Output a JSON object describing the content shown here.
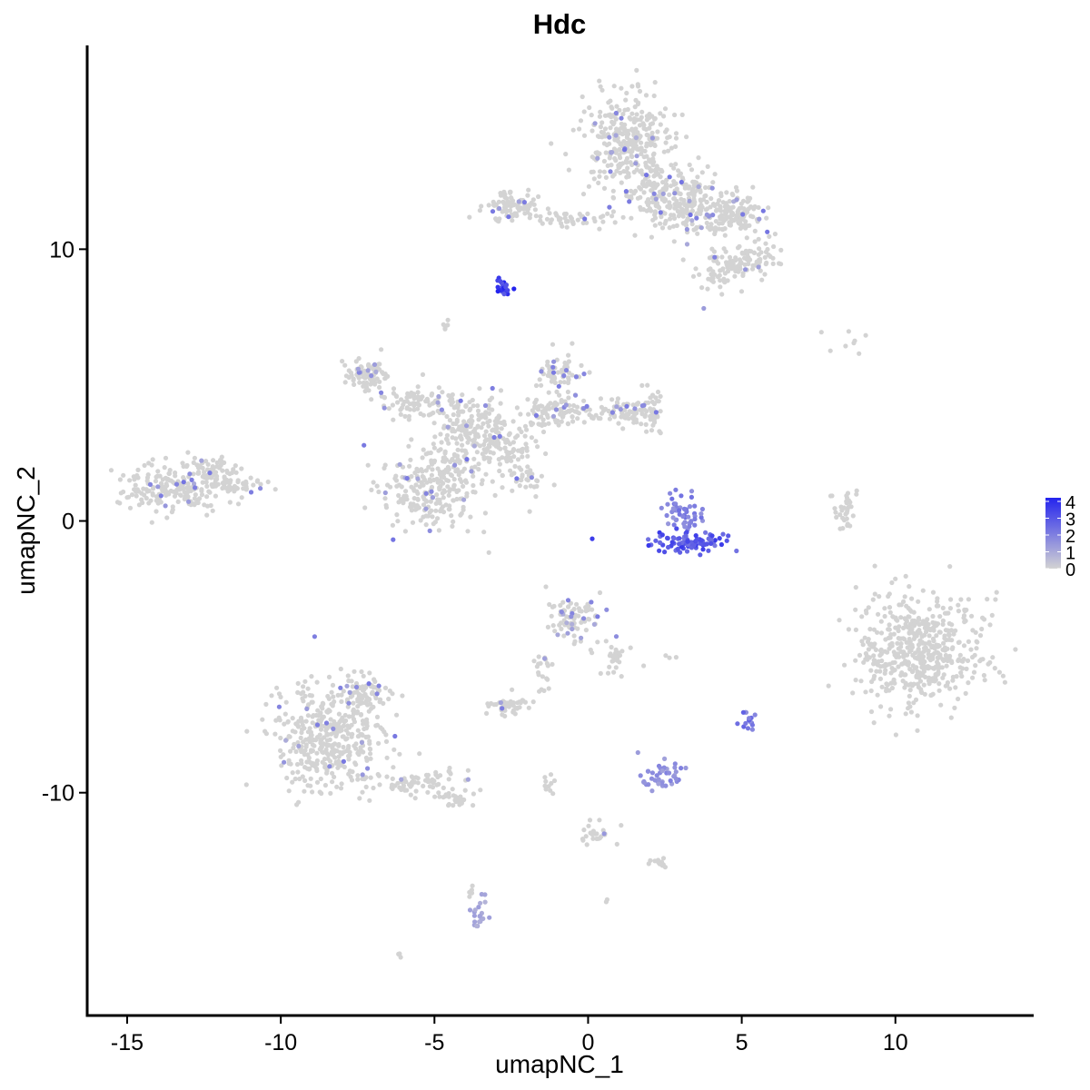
{
  "chart_data": {
    "type": "scatter",
    "title": "Hdc",
    "xlabel": "umapNC_1",
    "ylabel": "umapNC_2",
    "xlim": [
      -16.3,
      14.5
    ],
    "ylim": [
      -18.2,
      17.5
    ],
    "x_ticks": [
      {
        "value": -15,
        "label": "-15"
      },
      {
        "value": -10,
        "label": "-10"
      },
      {
        "value": -5,
        "label": "-5"
      },
      {
        "value": 0,
        "label": "0"
      },
      {
        "value": 5,
        "label": "5"
      },
      {
        "value": 10,
        "label": "10"
      }
    ],
    "y_ticks": [
      {
        "value": -10,
        "label": "-10"
      },
      {
        "value": 0,
        "label": "0"
      },
      {
        "value": 10,
        "label": "10"
      }
    ],
    "grid": false,
    "legend": {
      "placement": "right",
      "type": "colorbar",
      "range": [
        0,
        4
      ],
      "labels": [
        "4",
        "3",
        "2",
        "1",
        "0"
      ]
    },
    "colors": {
      "low": "#d3d3d3",
      "high": "#2424ee",
      "axis": "#000000",
      "background": "#ffffff"
    },
    "clusters": [
      {
        "cx": 1.3,
        "cy": 14.0,
        "rx": 1.4,
        "ry": 1.5,
        "n": 320,
        "expr": 0.05,
        "hot": 0.05
      },
      {
        "cx": 2.3,
        "cy": 12.0,
        "rx": 1.2,
        "ry": 0.9,
        "n": 120,
        "expr": 0.05,
        "hot": 0.05
      },
      {
        "cx": -2.6,
        "cy": 11.6,
        "rx": 0.9,
        "ry": 0.5,
        "n": 90,
        "expr": 0.05,
        "hot": 0.05
      },
      {
        "cx": -0.5,
        "cy": 11.1,
        "rx": 1.5,
        "ry": 0.25,
        "n": 45,
        "expr": 0.05,
        "hot": 0.05
      },
      {
        "cx": 3.3,
        "cy": 11.8,
        "rx": 1.1,
        "ry": 1.2,
        "n": 170,
        "expr": 0.05,
        "hot": 0.05
      },
      {
        "cx": 4.8,
        "cy": 11.3,
        "rx": 1.0,
        "ry": 0.6,
        "n": 120,
        "expr": 0.05,
        "hot": 0.05
      },
      {
        "cx": 5.2,
        "cy": 9.6,
        "rx": 0.8,
        "ry": 0.6,
        "n": 90,
        "expr": 0.05,
        "hot": 0.05
      },
      {
        "cx": 4.2,
        "cy": 9.0,
        "rx": 0.5,
        "ry": 0.8,
        "n": 40,
        "expr": 0.05,
        "hot": 0.05
      },
      {
        "cx": -2.8,
        "cy": 8.6,
        "rx": 0.25,
        "ry": 0.25,
        "n": 22,
        "expr": 4.0,
        "hot": 0.0
      },
      {
        "cx": -4.6,
        "cy": 7.2,
        "rx": 0.2,
        "ry": 0.2,
        "n": 6,
        "expr": 0.2,
        "hot": 0.0
      },
      {
        "cx": -7.2,
        "cy": 5.4,
        "rx": 0.7,
        "ry": 0.5,
        "n": 80,
        "expr": 0.05,
        "hot": 0.05
      },
      {
        "cx": -5.6,
        "cy": 4.4,
        "rx": 1.1,
        "ry": 0.5,
        "n": 80,
        "expr": 0.05,
        "hot": 0.05
      },
      {
        "cx": -3.8,
        "cy": 3.6,
        "rx": 1.2,
        "ry": 0.9,
        "n": 150,
        "expr": 0.05,
        "hot": 0.05
      },
      {
        "cx": -2.8,
        "cy": 2.8,
        "rx": 1.0,
        "ry": 1.0,
        "n": 110,
        "expr": 0.05,
        "hot": 0.05
      },
      {
        "cx": -1.1,
        "cy": 4.0,
        "rx": 1.0,
        "ry": 0.5,
        "n": 100,
        "expr": 0.05,
        "hot": 0.05
      },
      {
        "cx": -1.0,
        "cy": 5.5,
        "rx": 0.7,
        "ry": 0.7,
        "n": 60,
        "expr": 0.3,
        "hot": 0.15
      },
      {
        "cx": 1.3,
        "cy": 4.0,
        "rx": 0.9,
        "ry": 0.4,
        "n": 70,
        "expr": 0.05,
        "hot": 0.05
      },
      {
        "cx": 2.1,
        "cy": 4.0,
        "rx": 0.4,
        "ry": 0.6,
        "n": 40,
        "expr": 0.05,
        "hot": 0.05
      },
      {
        "cx": -5.2,
        "cy": 1.0,
        "rx": 1.4,
        "ry": 1.3,
        "n": 220,
        "expr": 0.05,
        "hot": 0.05
      },
      {
        "cx": -4.3,
        "cy": 2.0,
        "rx": 0.8,
        "ry": 0.8,
        "n": 50,
        "expr": 0.05,
        "hot": 0.05
      },
      {
        "cx": -2.2,
        "cy": 1.5,
        "rx": 0.9,
        "ry": 0.6,
        "n": 30,
        "expr": 0.05,
        "hot": 0.05
      },
      {
        "cx": -13.4,
        "cy": 1.2,
        "rx": 1.6,
        "ry": 0.9,
        "n": 200,
        "expr": 0.05,
        "hot": 0.05
      },
      {
        "cx": -12.2,
        "cy": 1.8,
        "rx": 0.7,
        "ry": 0.6,
        "n": 60,
        "expr": 0.05,
        "hot": 0.05
      },
      {
        "cx": -11.3,
        "cy": 1.3,
        "rx": 0.7,
        "ry": 0.3,
        "n": 30,
        "expr": 0.05,
        "hot": 0.05
      },
      {
        "cx": 3.1,
        "cy": 0.4,
        "rx": 0.6,
        "ry": 0.6,
        "n": 50,
        "expr": 2.2,
        "hot": 0.2
      },
      {
        "cx": 3.3,
        "cy": -0.8,
        "rx": 1.2,
        "ry": 0.35,
        "n": 90,
        "expr": 3.4,
        "hot": 0.1
      },
      {
        "cx": 8.3,
        "cy": 0.4,
        "rx": 0.4,
        "ry": 0.6,
        "n": 35,
        "expr": 0.05,
        "hot": 0.0
      },
      {
        "cx": 10.8,
        "cy": -4.8,
        "rx": 1.8,
        "ry": 2.0,
        "n": 520,
        "expr": 0.05,
        "hot": 0.0
      },
      {
        "cx": 8.2,
        "cy": 6.6,
        "rx": 1.2,
        "ry": 0.4,
        "n": 8,
        "expr": 0.05,
        "hot": 0.0
      },
      {
        "cx": -0.5,
        "cy": -3.6,
        "rx": 0.8,
        "ry": 0.6,
        "n": 90,
        "expr": 0.4,
        "hot": 0.15
      },
      {
        "cx": 0.9,
        "cy": -5.0,
        "rx": 0.5,
        "ry": 0.6,
        "n": 30,
        "expr": 0.3,
        "hot": 0.1
      },
      {
        "cx": -1.4,
        "cy": -5.5,
        "rx": 0.4,
        "ry": 0.7,
        "n": 20,
        "expr": 0.05,
        "hot": 0.05
      },
      {
        "cx": -2.6,
        "cy": -6.8,
        "rx": 0.6,
        "ry": 0.3,
        "n": 45,
        "expr": 0.05,
        "hot": 0.05
      },
      {
        "cx": -8.4,
        "cy": -8.0,
        "rx": 1.6,
        "ry": 1.8,
        "n": 420,
        "expr": 0.05,
        "hot": 0.04
      },
      {
        "cx": -7.2,
        "cy": -6.4,
        "rx": 0.8,
        "ry": 0.6,
        "n": 70,
        "expr": 0.05,
        "hot": 0.04
      },
      {
        "cx": -5.4,
        "cy": -9.6,
        "rx": 1.2,
        "ry": 0.4,
        "n": 70,
        "expr": 0.05,
        "hot": 0.04
      },
      {
        "cx": -4.2,
        "cy": -10.2,
        "rx": 0.6,
        "ry": 0.3,
        "n": 25,
        "expr": 0.05,
        "hot": 0.0
      },
      {
        "cx": 5.1,
        "cy": -7.3,
        "rx": 0.2,
        "ry": 0.4,
        "n": 15,
        "expr": 2.5,
        "hot": 0.0
      },
      {
        "cx": 2.4,
        "cy": -9.4,
        "rx": 0.6,
        "ry": 0.5,
        "n": 45,
        "expr": 1.8,
        "hot": 0.2
      },
      {
        "cx": 0.3,
        "cy": -11.5,
        "rx": 0.6,
        "ry": 0.4,
        "n": 25,
        "expr": 0.05,
        "hot": 0.05
      },
      {
        "cx": 2.3,
        "cy": -12.6,
        "rx": 0.3,
        "ry": 0.2,
        "n": 15,
        "expr": 0.05,
        "hot": 0.0
      },
      {
        "cx": -3.6,
        "cy": -14.5,
        "rx": 0.3,
        "ry": 0.5,
        "n": 20,
        "expr": 1.2,
        "hot": 0.2
      },
      {
        "cx": -3.8,
        "cy": -13.6,
        "rx": 0.1,
        "ry": 0.3,
        "n": 6,
        "expr": 0.2,
        "hot": 0.0
      },
      {
        "cx": -6.1,
        "cy": -16.0,
        "rx": 0.1,
        "ry": 0.1,
        "n": 3,
        "expr": 0.05,
        "hot": 0.0
      },
      {
        "cx": 0.6,
        "cy": -14.0,
        "rx": 0.1,
        "ry": 0.1,
        "n": 2,
        "expr": 0.05,
        "hot": 0.0
      },
      {
        "cx": -1.3,
        "cy": -9.7,
        "rx": 0.2,
        "ry": 0.6,
        "n": 10,
        "expr": 0.05,
        "hot": 0.0
      },
      {
        "cx": 2.7,
        "cy": -5.0,
        "rx": 0.2,
        "ry": 0.1,
        "n": 3,
        "expr": 0.05,
        "hot": 0.0
      }
    ]
  }
}
